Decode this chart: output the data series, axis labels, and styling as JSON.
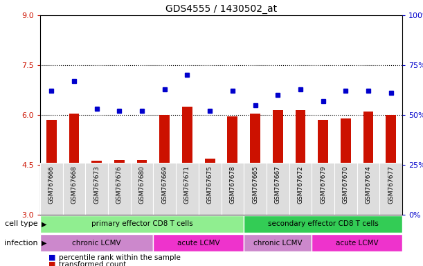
{
  "title": "GDS4555 / 1430502_at",
  "samples": [
    "GSM767666",
    "GSM767668",
    "GSM767673",
    "GSM767676",
    "GSM767680",
    "GSM767669",
    "GSM767671",
    "GSM767675",
    "GSM767678",
    "GSM767665",
    "GSM767667",
    "GSM767672",
    "GSM767679",
    "GSM767670",
    "GSM767674",
    "GSM767677"
  ],
  "bar_values": [
    5.85,
    6.05,
    4.62,
    4.65,
    4.65,
    6.0,
    6.25,
    4.68,
    5.95,
    6.05,
    6.15,
    6.15,
    5.85,
    5.9,
    6.1,
    6.0
  ],
  "dot_values": [
    62,
    67,
    53,
    52,
    52,
    63,
    70,
    52,
    62,
    55,
    60,
    63,
    57,
    62,
    62,
    61
  ],
  "bar_color": "#cc1100",
  "dot_color": "#0000cc",
  "ylim_left": [
    3,
    9
  ],
  "ylim_right": [
    0,
    100
  ],
  "yticks_left": [
    3,
    4.5,
    6.0,
    7.5,
    9
  ],
  "yticks_right": [
    0,
    25,
    50,
    75,
    100
  ],
  "ytick_labels_right": [
    "0%",
    "25%",
    "50%",
    "75%",
    "100%"
  ],
  "cell_type_groups": [
    {
      "label": "primary effector CD8 T cells",
      "start": 0,
      "end": 9,
      "color": "#90ee90"
    },
    {
      "label": "secondary effector CD8 T cells",
      "start": 9,
      "end": 16,
      "color": "#33cc55"
    }
  ],
  "infection_groups": [
    {
      "label": "chronic LCMV",
      "start": 0,
      "end": 5,
      "color": "#cc88cc"
    },
    {
      "label": "acute LCMV",
      "start": 5,
      "end": 9,
      "color": "#ee33cc"
    },
    {
      "label": "chronic LCMV",
      "start": 9,
      "end": 12,
      "color": "#cc88cc"
    },
    {
      "label": "acute LCMV",
      "start": 12,
      "end": 16,
      "color": "#ee33cc"
    }
  ],
  "cell_type_label": "cell type",
  "infection_label": "infection",
  "legend_bar_label": "transformed count",
  "legend_dot_label": "percentile rank within the sample",
  "bg_color": "#ffffff",
  "tick_color_left": "#cc1100",
  "tick_color_right": "#0000cc",
  "label_bg_color": "#dddddd"
}
